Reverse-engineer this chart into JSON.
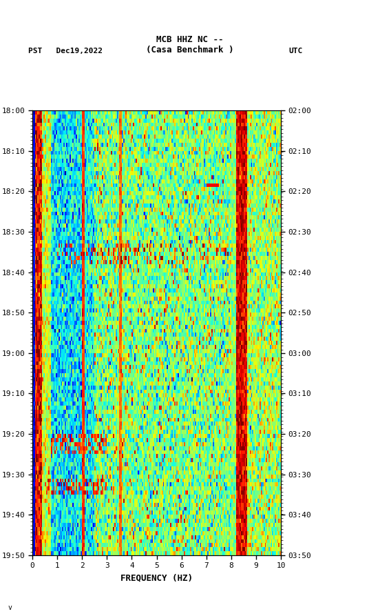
{
  "title_line1": "MCB HHZ NC --",
  "title_line2": "(Casa Benchmark )",
  "left_label": "PST   Dec19,2022",
  "right_label": "UTC",
  "xlabel": "FREQUENCY (HZ)",
  "freq_min": 0,
  "freq_max": 10,
  "left_yticks": [
    "18:00",
    "18:10",
    "18:20",
    "18:30",
    "18:40",
    "18:50",
    "19:00",
    "19:10",
    "19:20",
    "19:30",
    "19:40",
    "19:50"
  ],
  "right_yticks": [
    "02:00",
    "02:10",
    "02:20",
    "02:30",
    "02:40",
    "02:50",
    "03:00",
    "03:10",
    "03:20",
    "03:30",
    "03:40",
    "03:50"
  ],
  "xticks": [
    0,
    1,
    2,
    3,
    4,
    5,
    6,
    7,
    8,
    9,
    10
  ],
  "background_color": "#ffffff",
  "fig_width": 5.52,
  "fig_height": 8.93,
  "seed": 12345,
  "n_time": 110,
  "n_freq": 200,
  "logo_color": "#1a6b3c",
  "black_panel_color": "#000000"
}
